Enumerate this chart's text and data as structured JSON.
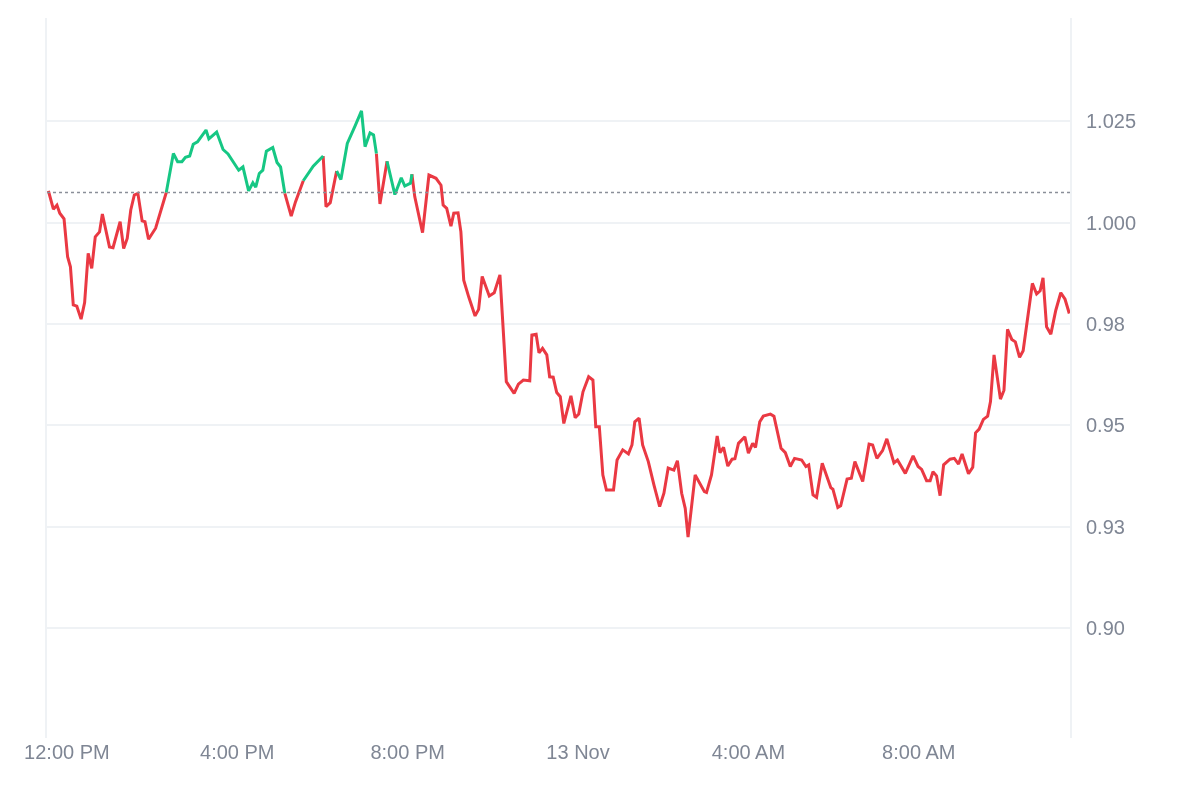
{
  "chart_data": {
    "type": "line",
    "xlim": [
      "--11-12T11:32",
      "--11-13T11:33"
    ],
    "xticks": [
      {
        "value": "--11-12T12:00",
        "label": "12:00 PM"
      },
      {
        "value": "--11-12T16:00",
        "label": "4:00 PM"
      },
      {
        "value": "--11-12T20:00",
        "label": "8:00 PM"
      },
      {
        "value": "--11-13T00:00",
        "label": "13 Nov"
      },
      {
        "value": "--11-13T04:00",
        "label": "4:00 AM"
      },
      {
        "value": "--11-13T08:00",
        "label": "8:00 AM"
      }
    ],
    "ylim": [
      0.873,
      1.0504
    ],
    "yticks": [
      {
        "value": 0.9,
        "label": "0.90"
      },
      {
        "value": 0.925,
        "label": "0.93"
      },
      {
        "value": 0.95,
        "label": "0.95"
      },
      {
        "value": 0.975,
        "label": "0.98"
      },
      {
        "value": 1.0,
        "label": "1.000"
      },
      {
        "value": 1.025,
        "label": "1.025"
      }
    ],
    "grid": "y",
    "ref_lines": [
      {
        "axis": "y",
        "value": 1.0074,
        "color": "#8a8f99",
        "line_style": "dotted"
      }
    ],
    "series": [
      {
        "color": "#ea3943",
        "x": [
          "--11-12T11:34",
          "--11-12T11:41",
          "--11-12T11:46",
          "--11-12T11:50",
          "--11-12T11:56",
          "--11-12T12:01",
          "--11-12T12:05",
          "--11-12T12:09",
          "--11-12T12:14",
          "--11-12T12:20",
          "--11-12T12:25",
          "--11-12T12:30",
          "--11-12T12:35",
          "--11-12T12:40",
          "--11-12T12:46",
          "--11-12T12:50",
          "--11-12T13:00",
          "--11-12T13:05",
          "--11-12T13:15",
          "--11-12T13:20",
          "--11-12T13:25",
          "--11-12T13:30",
          "--11-12T13:35",
          "--11-12T13:40",
          "--11-12T13:46",
          "--11-12T13:50",
          "--11-12T13:55",
          "--11-12T14:05",
          "--11-12T14:20",
          "--11-12T15:00",
          "--11-12T17:07",
          "--11-12T17:16",
          "--11-12T17:22",
          "--11-12T17:33",
          "--11-12T17:48",
          "--11-12T18:01",
          "--11-12T18:05",
          "--11-12T18:11",
          "--11-12T18:20",
          "--11-12T18:48",
          "--11-12T19:16",
          "--11-12T19:21",
          "--11-12T19:31",
          "--11-12T19:48",
          "--11-12T20:06",
          "--11-12T20:10",
          "--11-12T20:21",
          "--11-12T20:30",
          "--11-12T20:40",
          "--11-12T20:47",
          "--11-12T20:50",
          "--11-12T20:55",
          "--11-12T21:01",
          "--11-12T21:05",
          "--11-12T21:11",
          "--11-12T21:15",
          "--11-12T21:19",
          "--11-12T21:26",
          "--11-12T21:35",
          "--11-12T21:40",
          "--11-12T21:45",
          "--11-12T21:55",
          "--11-12T22:02",
          "--11-12T22:10",
          "--11-12T22:19",
          "--11-12T22:30",
          "--11-12T22:36",
          "--11-12T22:43",
          "--11-12T22:52",
          "--11-12T22:55",
          "--11-12T23:01",
          "--11-12T23:05",
          "--11-12T23:10",
          "--11-12T23:16",
          "--11-12T23:20",
          "--11-12T23:25",
          "--11-12T23:30",
          "--11-12T23:35",
          "--11-12T23:40",
          "--11-12T23:50",
          "--11-12T23:56",
          "--11-13T00:01",
          "--11-13T00:07",
          "--11-13T00:15",
          "--11-13T00:21",
          "--11-13T00:25",
          "--11-13T00:30",
          "--11-13T00:35",
          "--11-13T00:40",
          "--11-13T00:50",
          "--11-13T00:55",
          "--11-13T01:03",
          "--11-13T01:11",
          "--11-13T01:16",
          "--11-13T01:20",
          "--11-13T01:26",
          "--11-13T01:31",
          "--11-13T01:39",
          "--11-13T01:47",
          "--11-13T01:55",
          "--11-13T02:01",
          "--11-13T02:07",
          "--11-13T02:15",
          "--11-13T02:20",
          "--11-13T02:26",
          "--11-13T02:31",
          "--11-13T02:35",
          "--11-13T02:45",
          "--11-13T02:58",
          "--11-13T03:01",
          "--11-13T03:08",
          "--11-13T03:16",
          "--11-13T03:20",
          "--11-13T03:25",
          "--11-13T03:31",
          "--11-13T03:37",
          "--11-13T03:41",
          "--11-13T03:46",
          "--11-13T03:55",
          "--11-13T04:00",
          "--11-13T04:06",
          "--11-13T04:10",
          "--11-13T04:16",
          "--11-13T04:21",
          "--11-13T04:31",
          "--11-13T04:36",
          "--11-13T04:46",
          "--11-13T04:52",
          "--11-13T04:59",
          "--11-13T05:05",
          "--11-13T05:15",
          "--11-13T05:21",
          "--11-13T05:25",
          "--11-13T05:31",
          "--11-13T05:36",
          "--11-13T05:44",
          "--11-13T05:56",
          "--11-13T05:59",
          "--11-13T06:06",
          "--11-13T06:10",
          "--11-13T06:19",
          "--11-13T06:25",
          "--11-13T06:30",
          "--11-13T06:41",
          "--11-13T06:50",
          "--11-13T06:55",
          "--11-13T07:01",
          "--11-13T07:09",
          "--11-13T07:15",
          "--11-13T07:25",
          "--11-13T07:30",
          "--11-13T07:41",
          "--11-13T07:52",
          "--11-13T07:59",
          "--11-13T08:04",
          "--11-13T08:11",
          "--11-13T08:16",
          "--11-13T08:20",
          "--11-13T08:25",
          "--11-13T08:30",
          "--11-13T08:35",
          "--11-13T08:44",
          "--11-13T08:50",
          "--11-13T08:56",
          "--11-13T09:01",
          "--11-13T09:10",
          "--11-13T09:16",
          "--11-13T09:20",
          "--11-13T09:25",
          "--11-13T09:31",
          "--11-13T09:37",
          "--11-13T09:41",
          "--11-13T09:46",
          "--11-13T09:55",
          "--11-13T10:00",
          "--11-13T10:05",
          "--11-13T10:11",
          "--11-13T10:16",
          "--11-13T10:22",
          "--11-13T10:27",
          "--11-13T10:40",
          "--11-13T10:46",
          "--11-13T10:51",
          "--11-13T10:55",
          "--11-13T11:00",
          "--11-13T11:06",
          "--11-13T11:13",
          "--11-13T11:20",
          "--11-13T11:26",
          "--11-13T11:32"
        ],
        "values": [
          1.0078,
          1.0033,
          1.0043,
          1.0023,
          1.0009,
          0.9916,
          0.9891,
          0.9797,
          0.9794,
          0.9762,
          0.9803,
          0.9924,
          0.9887,
          0.9965,
          0.9977,
          1.0021,
          0.994,
          0.9938,
          1.0002,
          0.9936,
          0.9961,
          1.0031,
          1.0068,
          1.0072,
          1.0004,
          1.0002,
          0.9959,
          0.9986,
          1.0074,
          null,
          1.0072,
          1.0016,
          1.0051,
          1.0103,
          null,
          1.0164,
          1.0039,
          1.0049,
          1.0127,
          null,
          1.017,
          1.0046,
          1.0151,
          null,
          1.0119,
          1.0064,
          0.9975,
          1.0117,
          1.0109,
          1.0092,
          1.0043,
          1.0035,
          0.9991,
          1.0023,
          1.0024,
          0.9977,
          0.9858,
          0.9817,
          0.977,
          0.9786,
          0.9867,
          0.9819,
          0.9827,
          0.9871,
          0.9608,
          0.9579,
          0.9602,
          0.9612,
          0.961,
          0.9723,
          0.9725,
          0.9679,
          0.969,
          0.9674,
          0.962,
          0.9619,
          0.9581,
          0.9571,
          0.9505,
          0.9573,
          0.9519,
          0.9528,
          0.9583,
          0.962,
          0.9612,
          0.9497,
          0.9497,
          0.9378,
          0.9341,
          0.9341,
          0.9415,
          0.944,
          0.943,
          0.9452,
          0.9509,
          0.9518,
          0.9452,
          0.9411,
          0.9353,
          0.93,
          0.9333,
          0.9395,
          0.939,
          0.9413,
          0.9333,
          0.9296,
          0.9225,
          0.9378,
          0.9337,
          0.9335,
          0.9378,
          0.9474,
          0.9433,
          0.9446,
          0.94,
          0.9417,
          0.9418,
          0.9456,
          0.9472,
          0.9432,
          0.9456,
          0.9446,
          0.9509,
          0.9523,
          0.9528,
          0.9523,
          0.9444,
          0.9433,
          0.9399,
          0.9419,
          0.9415,
          0.9399,
          0.9403,
          0.9329,
          0.9323,
          0.9407,
          0.9347,
          0.9343,
          0.9298,
          0.9302,
          0.9368,
          0.937,
          0.9411,
          0.9362,
          0.9454,
          0.9452,
          0.9419,
          0.9438,
          0.9467,
          0.9408,
          0.9415,
          0.9382,
          0.9425,
          0.9399,
          0.9392,
          0.9364,
          0.9364,
          0.9386,
          0.9376,
          0.9327,
          0.9403,
          0.9417,
          0.9419,
          0.9405,
          0.943,
          0.9381,
          0.9397,
          0.9482,
          0.9491,
          0.9515,
          0.9523,
          0.9559,
          0.9674,
          0.9565,
          0.9587,
          0.9737,
          0.9712,
          0.9706,
          0.9668,
          0.9684,
          0.985,
          0.9824,
          0.9832,
          0.9864,
          0.9743,
          0.9725,
          0.9784,
          0.9827,
          0.9811,
          0.9776
        ]
      },
      {
        "color": "#16c784",
        "x": [
          "--11-12T14:20",
          "--11-12T14:30",
          "--11-12T14:36",
          "--11-12T14:42",
          "--11-12T14:47",
          "--11-12T14:53",
          "--11-12T14:58",
          "--11-12T15:04",
          "--11-12T15:16",
          "--11-12T15:20",
          "--11-12T15:31",
          "--11-12T15:40",
          "--11-12T15:47",
          "--11-12T16:02",
          "--11-12T16:08",
          "--11-12T16:16",
          "--11-12T16:22",
          "--11-12T16:26",
          "--11-12T16:31",
          "--11-12T16:36",
          "--11-12T16:41",
          "--11-12T16:50",
          "--11-12T16:56",
          "--11-12T17:01",
          "--11-12T17:07",
          "--11-12T17:18",
          "--11-12T17:33",
          "--11-12T17:47",
          "--11-12T18:01",
          "--11-12T18:12",
          "--11-12T18:20",
          "--11-12T18:26",
          "--11-12T18:35",
          "--11-12T18:46",
          "--11-12T18:55",
          "--11-12T19:00",
          "--11-12T19:07",
          "--11-12T19:12",
          "--11-12T19:16",
          "--11-12T19:24",
          "--11-12T19:31",
          "--11-12T19:42",
          "--11-12T19:51",
          "--11-12T19:56",
          "--11-12T20:04",
          "--11-12T20:06"
        ],
        "values": [
          1.0074,
          1.017,
          1.015,
          1.015,
          1.0161,
          1.0164,
          1.0193,
          1.0199,
          1.0228,
          1.0206,
          1.0223,
          1.018,
          1.0169,
          1.0129,
          1.0137,
          1.0078,
          1.0098,
          1.0087,
          1.0121,
          1.0129,
          1.0176,
          1.0185,
          1.0148,
          1.0137,
          1.0072,
          null,
          1.0103,
          1.0139,
          1.0164,
          null,
          1.0127,
          1.0106,
          1.0195,
          1.0238,
          1.0275,
          1.0187,
          1.0221,
          1.0216,
          1.017,
          null,
          1.0151,
          1.0069,
          1.011,
          1.009,
          1.0097,
          1.0119
        ]
      }
    ]
  }
}
